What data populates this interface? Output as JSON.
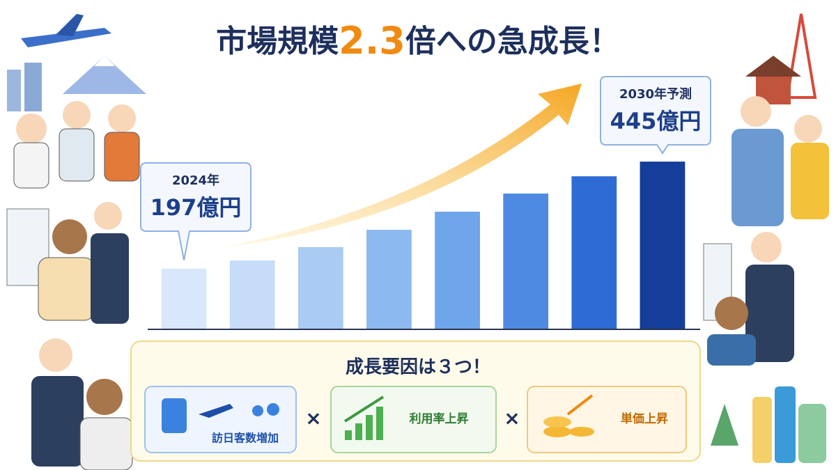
{
  "chart_data": {
    "type": "bar",
    "title_parts": [
      "市場規模",
      "2.3",
      "倍への急成長！"
    ],
    "categories": [
      null,
      null,
      null,
      null,
      null,
      null,
      null,
      null
    ],
    "values": [
      197,
      216,
      247,
      287,
      329,
      371,
      411,
      445
    ],
    "value_labels": [
      "197億円",
      null,
      null,
      null,
      null,
      null,
      null,
      "445億円"
    ],
    "callout_years": [
      "2024年",
      null,
      null,
      null,
      null,
      null,
      null,
      "2030年予測"
    ],
    "colors": [
      "#d8e7fb",
      "#c6dcf8",
      "#a9cbf4",
      "#8cb9f0",
      "#6ea5eb",
      "#4e8ae2",
      "#2f6bd5",
      "#143e9a"
    ],
    "ylim": [
      58,
      450
    ]
  },
  "factors": {
    "heading": "成長要因は３つ！",
    "items": [
      "訪日客数増加",
      "利用率上昇",
      "単価上昇"
    ],
    "separator": "×"
  }
}
